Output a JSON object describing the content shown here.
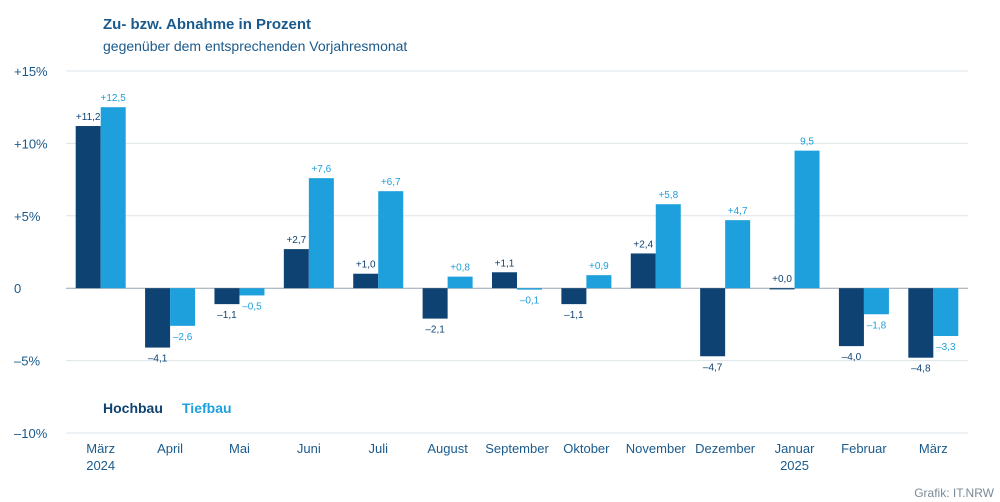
{
  "credit": "Grafik: IT.NRW",
  "colors": {
    "hochbau": "#0e4272",
    "tiefbau": "#1ea0dc",
    "text": "#1a5a8c",
    "grid": "#dde4ea",
    "axis": "#9aa6b2"
  },
  "chart_data": {
    "type": "bar",
    "title": "Zu- bzw. Abnahme in Prozent",
    "subtitle": "gegenüber dem entsprechenden Vorjahresmonat",
    "categories": [
      "März 2024",
      "April",
      "Mai",
      "Juni",
      "Juli",
      "August",
      "September",
      "Oktober",
      "November",
      "Dezember",
      "Januar 2025",
      "Februar",
      "März"
    ],
    "series": [
      {
        "name": "Hochbau",
        "values": [
          11.2,
          -4.1,
          -1.1,
          2.7,
          1.0,
          -2.1,
          1.1,
          -1.1,
          2.4,
          -4.7,
          0.0,
          -4.0,
          -4.8
        ],
        "labels": [
          "+11,2",
          "–4,1",
          "–1,1",
          "+2,7",
          "+1,0",
          "–2,1",
          "+1,1",
          "–1,1",
          "+2,4",
          "–4,7",
          "+0,0",
          "–4,0",
          "–4,8"
        ]
      },
      {
        "name": "Tiefbau",
        "values": [
          12.5,
          -2.6,
          -0.5,
          7.6,
          6.7,
          0.8,
          -0.1,
          0.9,
          5.8,
          4.7,
          9.5,
          -1.8,
          -3.3
        ],
        "labels": [
          "+12,5",
          "–2,6",
          "–0,5",
          "+7,6",
          "+6,7",
          "+0,8",
          "–0,1",
          "+0,9",
          "+5,8",
          "+4,7",
          "9,5",
          "–1,8",
          "–3,3"
        ]
      }
    ],
    "ylim": [
      -10,
      15
    ],
    "yticks": [
      15,
      10,
      5,
      0,
      -5,
      -10
    ],
    "ytick_labels": [
      "+15%",
      "+10%",
      "+5%",
      "0",
      "–5%",
      "–10%"
    ],
    "grid": true,
    "legend": "bottom-left inside plot"
  }
}
